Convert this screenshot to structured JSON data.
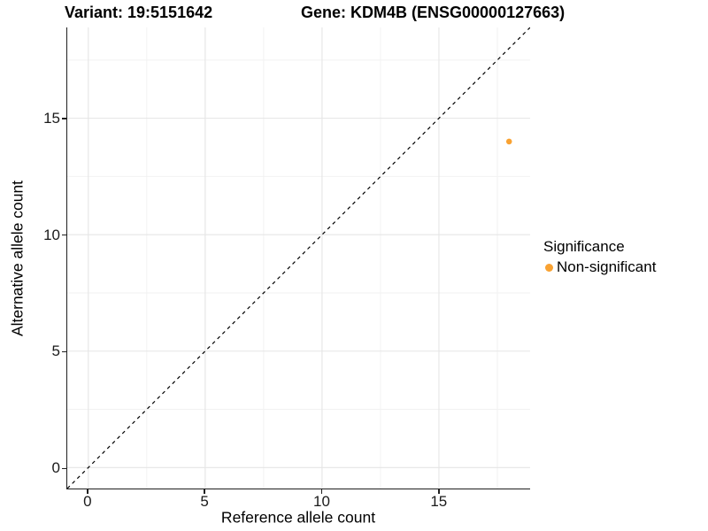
{
  "titles": {
    "variant": "Variant: 19:5151642",
    "gene": "Gene: KDM4B (ENSG00000127663)"
  },
  "axes": {
    "x": {
      "label": "Reference allele count"
    },
    "y": {
      "label": "Alternative allele count"
    }
  },
  "legend": {
    "title": "Significance",
    "items": [
      {
        "label": "Non-significant",
        "color": "#F9A232"
      }
    ]
  },
  "chart_data": {
    "type": "scatter",
    "title": "Variant: 19:5151642    Gene: KDM4B (ENSG00000127663)",
    "xlabel": "Reference allele count",
    "ylabel": "Alternative allele count",
    "xlim": [
      -0.9,
      18.9
    ],
    "ylim": [
      -0.9,
      18.9
    ],
    "x_ticks": [
      0,
      5,
      10,
      15
    ],
    "y_ticks": [
      0,
      5,
      10,
      15
    ],
    "x_minor_ticks": [
      2.5,
      7.5,
      12.5,
      17.5
    ],
    "y_minor_ticks": [
      2.5,
      7.5,
      12.5,
      17.5
    ],
    "grid": true,
    "legend_position": "right",
    "series": [
      {
        "name": "Non-significant",
        "color": "#F9A232",
        "points": [
          {
            "x": 18,
            "y": 14
          }
        ]
      }
    ],
    "reference_line": {
      "type": "identity",
      "slope": 1,
      "intercept": 0,
      "style": "dashed",
      "color": "#000000"
    },
    "colors": {
      "grid_major": "#e5e5e5",
      "grid_minor": "#f2f2f2",
      "axis_line": "#1f1f1f",
      "point": "#F9A232"
    }
  }
}
